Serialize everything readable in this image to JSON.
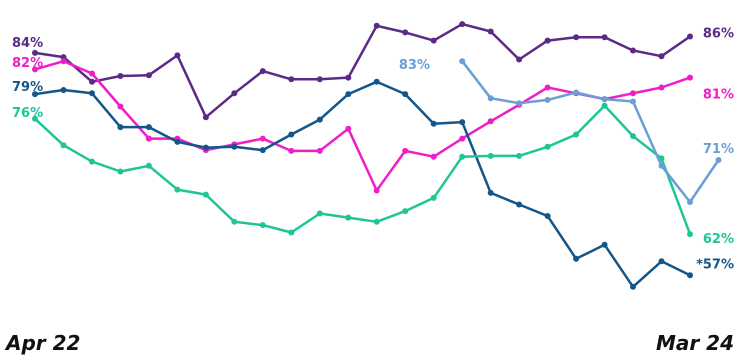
{
  "chart_data": {
    "type": "line",
    "x_start_label": "Apr 22",
    "x_end_label": "Mar 24",
    "n_points": 24,
    "grid": false,
    "legend": "none",
    "ylim": [
      54,
      88
    ],
    "series": [
      {
        "color": "#5b2a86",
        "start_label": "84%",
        "end_label": "86%",
        "start_index": 0,
        "values": [
          84,
          83.5,
          80.5,
          81.2,
          81.3,
          83.7,
          76.2,
          79.1,
          81.8,
          80.8,
          80.8,
          81.0,
          87.3,
          86.5,
          85.5,
          87.5,
          86.6,
          83.2,
          85.5,
          85.9,
          85.9,
          84.3,
          83.6,
          86.0
        ]
      },
      {
        "color": "#ee1ec8",
        "start_label": "82%",
        "end_label": "81%",
        "start_index": 0,
        "values": [
          82,
          83,
          81.5,
          77.5,
          73.6,
          73.6,
          72.2,
          72.9,
          73.6,
          72.1,
          72.1,
          74.8,
          67.3,
          72.1,
          71.4,
          73.6,
          75.7,
          77.7,
          79.8,
          79.1,
          78.4,
          79.1,
          79.8,
          81.0
        ]
      },
      {
        "color": "#13568a",
        "start_label": "79%",
        "end_label": "*57%",
        "start_index": 0,
        "values": [
          79,
          79.5,
          79.1,
          75.0,
          75.0,
          73.2,
          72.5,
          72.6,
          72.2,
          74.1,
          75.9,
          79.0,
          80.5,
          79.0,
          75.4,
          75.6,
          67.0,
          65.6,
          64.2,
          59.0,
          60.7,
          55.6,
          58.7,
          57.0
        ]
      },
      {
        "color": "#1ec597",
        "start_label": "76%",
        "end_label": "62%",
        "start_index": 0,
        "values": [
          76,
          72.8,
          70.8,
          69.6,
          70.3,
          67.4,
          66.8,
          63.5,
          63.1,
          62.2,
          64.5,
          64.0,
          63.5,
          64.8,
          66.4,
          71.4,
          71.5,
          71.5,
          72.6,
          74.1,
          77.6,
          73.9,
          71.2,
          62.0
        ]
      },
      {
        "color": "#6a9fd6",
        "start_label": "83%",
        "end_label": "71%",
        "start_index": 15,
        "values": [
          83,
          78.5,
          77.9,
          78.3,
          79.2,
          78.4,
          78.1,
          70.3,
          65.9,
          71.0
        ]
      }
    ]
  }
}
